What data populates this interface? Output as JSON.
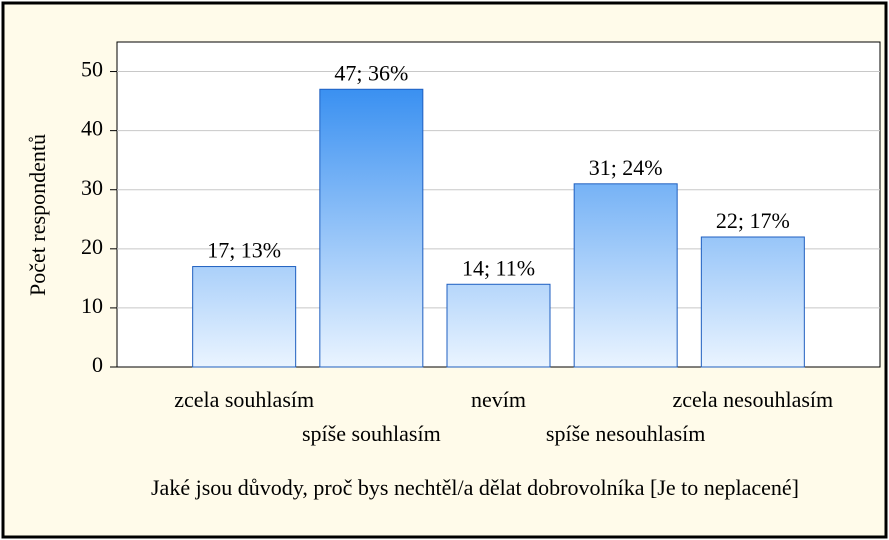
{
  "chart_data": {
    "type": "bar",
    "categories": [
      "zcela souhlasím",
      "spíše souhlasím",
      "nevím",
      "spíše nesouhlasím",
      "zcela nesouhlasím"
    ],
    "values": [
      17,
      47,
      14,
      31,
      22
    ],
    "value_labels": [
      "17; 13%",
      "47; 36%",
      "14; 11%",
      "31; 24%",
      "22; 17%"
    ],
    "color": "#2f8af0",
    "ylim": [
      0,
      55
    ],
    "yticks": [
      0,
      10,
      20,
      30,
      40,
      50
    ],
    "grid": true,
    "ylabel": "Počet respondentů",
    "xlabel": "Jaké jsou důvody, proč bys nechtěl/a dělat dobrovolníka [Je to neplacené]"
  }
}
